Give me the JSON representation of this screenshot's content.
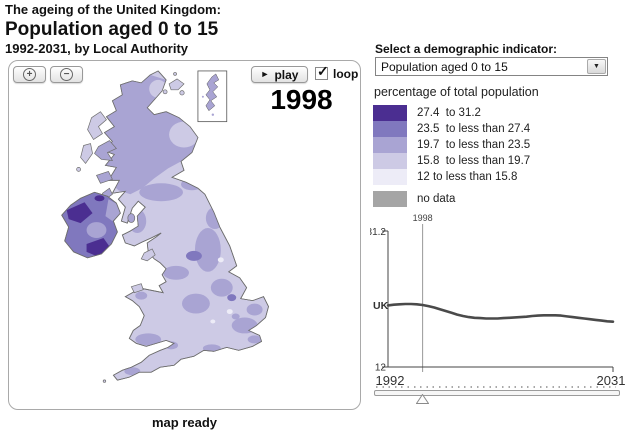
{
  "header": {
    "line1": "The ageing of the United Kingdom:",
    "line2": "Population aged 0 to 15",
    "line3": "1992-2031, by Local Authority"
  },
  "map_panel": {
    "zoom_in_icon": "+",
    "zoom_out_icon": "−",
    "play_icon": "►",
    "play_label": "play",
    "loop_label": "loop",
    "loop_checked": "✓",
    "year_display": "1998",
    "status": "map ready"
  },
  "indicator": {
    "label": "Select a demographic indicator:",
    "selected_option": "Population aged 0 to 15",
    "dropdown_arrow": "▼"
  },
  "legend": {
    "title": "percentage of total population",
    "items": [
      {
        "label": "27.4  to 31.2",
        "color": "#4b2e91"
      },
      {
        "label": "23.5  to less than 27.4",
        "color": "#8078be"
      },
      {
        "label": "19.7  to less than 23.5",
        "color": "#a9a4d3"
      },
      {
        "label": "15.8  to less than 19.7",
        "color": "#cdcae5"
      },
      {
        "label": "12 to less than 15.8",
        "color": "#edecf7"
      }
    ],
    "no_data_label": "no data",
    "no_data_color": "#a5a5a5"
  },
  "chart_data": {
    "type": "line",
    "title": "",
    "xlabel": "",
    "ylabel": "percentage of total population",
    "xlim": [
      1992,
      2031
    ],
    "ylim": [
      12,
      31.2
    ],
    "grid": false,
    "y_max_label": "31.2",
    "y_min_label": "12",
    "x_min_label": "1992",
    "x_max_label": "2031",
    "marker_year": 1998,
    "marker_label": "1998",
    "series": [
      {
        "name": "UK",
        "x": [
          1992,
          1993,
          1994,
          1995,
          1996,
          1997,
          1998,
          1999,
          2000,
          2001,
          2002,
          2003,
          2004,
          2005,
          2006,
          2007,
          2008,
          2009,
          2010,
          2011,
          2012,
          2013,
          2014,
          2015,
          2016,
          2017,
          2018,
          2019,
          2020,
          2021,
          2022,
          2023,
          2024,
          2025,
          2026,
          2027,
          2028,
          2029,
          2030,
          2031
        ],
        "values": [
          20.7,
          20.8,
          20.85,
          20.9,
          20.9,
          20.85,
          20.75,
          20.6,
          20.4,
          20.15,
          19.9,
          19.65,
          19.4,
          19.2,
          19.05,
          18.95,
          18.9,
          18.85,
          18.85,
          18.85,
          18.9,
          18.95,
          19.0,
          19.05,
          19.1,
          19.2,
          19.25,
          19.3,
          19.3,
          19.3,
          19.25,
          19.15,
          19.05,
          18.95,
          18.85,
          18.75,
          18.65,
          18.55,
          18.45,
          18.4
        ]
      }
    ]
  }
}
